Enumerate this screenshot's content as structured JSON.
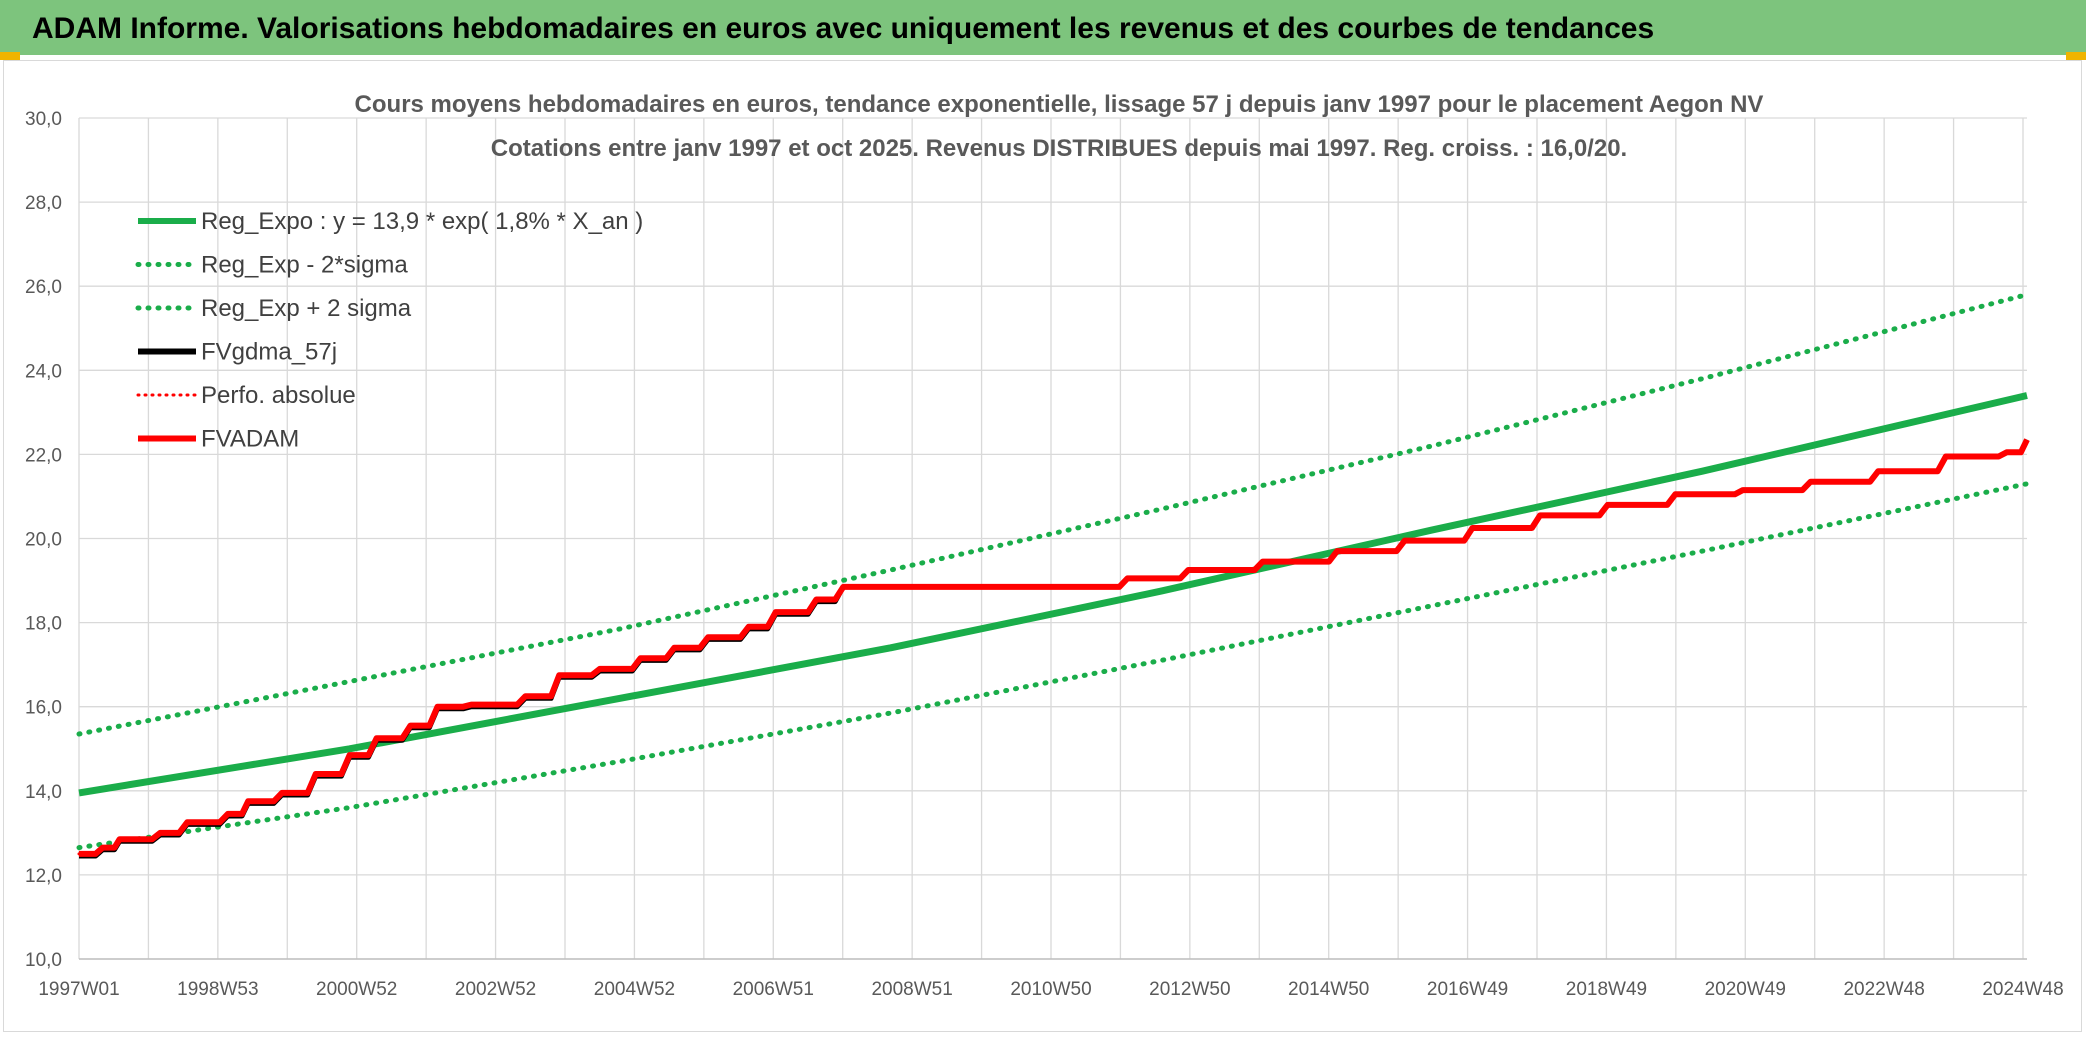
{
  "header": {
    "title": "ADAM Informe. Valorisations hebdomadaires en euros avec uniquement les revenus et des courbes de tendances"
  },
  "colors": {
    "banner": "#7dc47d",
    "green": "#1aad4a",
    "red": "#ff0000",
    "black": "#000000",
    "grid": "#d9d9d9"
  },
  "chart_data": {
    "type": "line",
    "title": "Cours moyens hebdomadaires en euros, tendance exponentielle, lissage 57 j depuis janv 1997 pour le placement Aegon NV",
    "subtitle": "Cotations entre janv 1997 et oct 2025. Revenus DISTRIBUES depuis mai 1997. Reg. croiss. : 16,0/20.",
    "xlabel": "",
    "ylabel": "",
    "x_ticks": [
      "1997W01",
      "1998W53",
      "2000W52",
      "2002W52",
      "2004W52",
      "2006W51",
      "2008W51",
      "2010W50",
      "2012W50",
      "2014W50",
      "2016W49",
      "2018W49",
      "2020W49",
      "2022W48",
      "2024W48"
    ],
    "x_range": [
      1997.0,
      2025.8
    ],
    "ylim": [
      10,
      30
    ],
    "y_ticks": [
      "10,0",
      "12,0",
      "14,0",
      "16,0",
      "18,0",
      "20,0",
      "22,0",
      "24,0",
      "26,0",
      "28,0",
      "30,0"
    ],
    "grid": true,
    "legend_position": "top-left",
    "series": [
      {
        "name": "Reg_Expo : y = 13,9 * exp( 1,8% *  X_an )",
        "style": "solid",
        "color": "#1aad4a",
        "x": [
          1997.0,
          2001.0,
          2005.0,
          2009.0,
          2013.0,
          2017.0,
          2021.0,
          2025.8
        ],
        "y": [
          13.95,
          15.0,
          16.2,
          17.4,
          18.75,
          20.2,
          21.6,
          23.4
        ]
      },
      {
        "name": "Reg_Exp - 2*sigma",
        "style": "dotted",
        "color": "#1aad4a",
        "x": [
          1997.0,
          2001.0,
          2005.0,
          2009.0,
          2013.0,
          2017.0,
          2021.0,
          2025.8
        ],
        "y": [
          12.65,
          13.6,
          14.7,
          15.85,
          17.1,
          18.4,
          19.7,
          21.3
        ]
      },
      {
        "name": "Reg_Exp + 2 sigma",
        "style": "dotted",
        "color": "#1aad4a",
        "x": [
          1997.0,
          2001.0,
          2005.0,
          2009.0,
          2013.0,
          2017.0,
          2021.0,
          2025.8
        ],
        "y": [
          15.35,
          16.6,
          17.85,
          19.25,
          20.7,
          22.2,
          23.8,
          25.8
        ]
      },
      {
        "name": "FVgdma_57j",
        "style": "solid",
        "color": "#000000",
        "x": [
          1997.0,
          1997.35,
          1997.6,
          1998.2,
          1998.6,
          1999.2,
          1999.5,
          2000.0,
          2000.5,
          2001.0,
          2001.4,
          2001.9,
          2002.3,
          2002.8,
          2003.6,
          2004.1,
          2004.7,
          2005.3,
          2005.8,
          2006.3,
          2006.9,
          2007.3,
          2007.9,
          2008.3,
          2010.5,
          2011.4,
          2012.5,
          2013.4,
          2014.5,
          2015.6,
          2016.6,
          2017.6,
          2018.6,
          2019.6,
          2020.6,
          2021.6,
          2022.6,
          2023.6,
          2024.6,
          2025.5,
          2025.8
        ],
        "y": [
          12.45,
          12.6,
          12.8,
          12.95,
          13.2,
          13.4,
          13.7,
          13.9,
          14.35,
          14.8,
          15.2,
          15.5,
          15.95,
          16.0,
          16.2,
          16.7,
          16.85,
          17.1,
          17.35,
          17.6,
          17.85,
          18.2,
          18.5,
          18.85,
          18.85,
          18.85,
          19.05,
          19.25,
          19.45,
          19.7,
          19.95,
          20.25,
          20.55,
          20.8,
          21.05,
          21.15,
          21.35,
          21.6,
          21.95,
          22.05,
          22.35
        ]
      },
      {
        "name": "Perfo. absolue",
        "style": "dotted",
        "color": "#ff0000",
        "x": [
          1997.0,
          1997.35,
          1997.6,
          1998.2,
          1998.6,
          1999.2,
          1999.5,
          2000.0,
          2000.5,
          2001.0,
          2001.4,
          2001.9,
          2002.3,
          2002.8,
          2003.6,
          2004.1,
          2004.7,
          2005.3,
          2005.8,
          2006.3,
          2006.9,
          2007.3,
          2007.9,
          2008.3,
          2010.5,
          2011.4,
          2012.5,
          2013.4,
          2014.5,
          2015.6,
          2016.6,
          2017.6,
          2018.6,
          2019.6,
          2020.6,
          2021.6,
          2022.6,
          2023.6,
          2024.6,
          2025.5,
          2025.8
        ],
        "y": [
          12.5,
          12.65,
          12.85,
          13.0,
          13.25,
          13.45,
          13.75,
          13.95,
          14.4,
          14.85,
          15.25,
          15.55,
          16.0,
          16.05,
          16.25,
          16.75,
          16.9,
          17.15,
          17.4,
          17.65,
          17.9,
          18.25,
          18.55,
          18.85,
          18.85,
          18.85,
          19.05,
          19.25,
          19.45,
          19.7,
          19.95,
          20.25,
          20.55,
          20.8,
          21.05,
          21.15,
          21.35,
          21.6,
          21.95,
          22.05,
          22.35
        ]
      },
      {
        "name": "FVADAM",
        "style": "solid",
        "color": "#ff0000",
        "x": [
          1997.0,
          1997.35,
          1997.6,
          1998.2,
          1998.6,
          1999.2,
          1999.5,
          2000.0,
          2000.5,
          2001.0,
          2001.4,
          2001.9,
          2002.3,
          2002.8,
          2003.6,
          2004.1,
          2004.7,
          2005.3,
          2005.8,
          2006.3,
          2006.9,
          2007.3,
          2007.9,
          2008.3,
          2010.5,
          2011.4,
          2012.5,
          2013.4,
          2014.5,
          2015.6,
          2016.6,
          2017.6,
          2018.6,
          2019.6,
          2020.6,
          2021.6,
          2022.6,
          2023.6,
          2024.6,
          2025.5,
          2025.8
        ],
        "y": [
          12.5,
          12.65,
          12.85,
          13.0,
          13.25,
          13.45,
          13.75,
          13.95,
          14.4,
          14.85,
          15.25,
          15.55,
          16.0,
          16.05,
          16.25,
          16.75,
          16.9,
          17.15,
          17.4,
          17.65,
          17.9,
          18.25,
          18.55,
          18.85,
          18.85,
          18.85,
          19.05,
          19.25,
          19.45,
          19.7,
          19.95,
          20.25,
          20.55,
          20.8,
          21.05,
          21.15,
          21.35,
          21.6,
          21.95,
          22.05,
          22.35
        ]
      }
    ]
  }
}
